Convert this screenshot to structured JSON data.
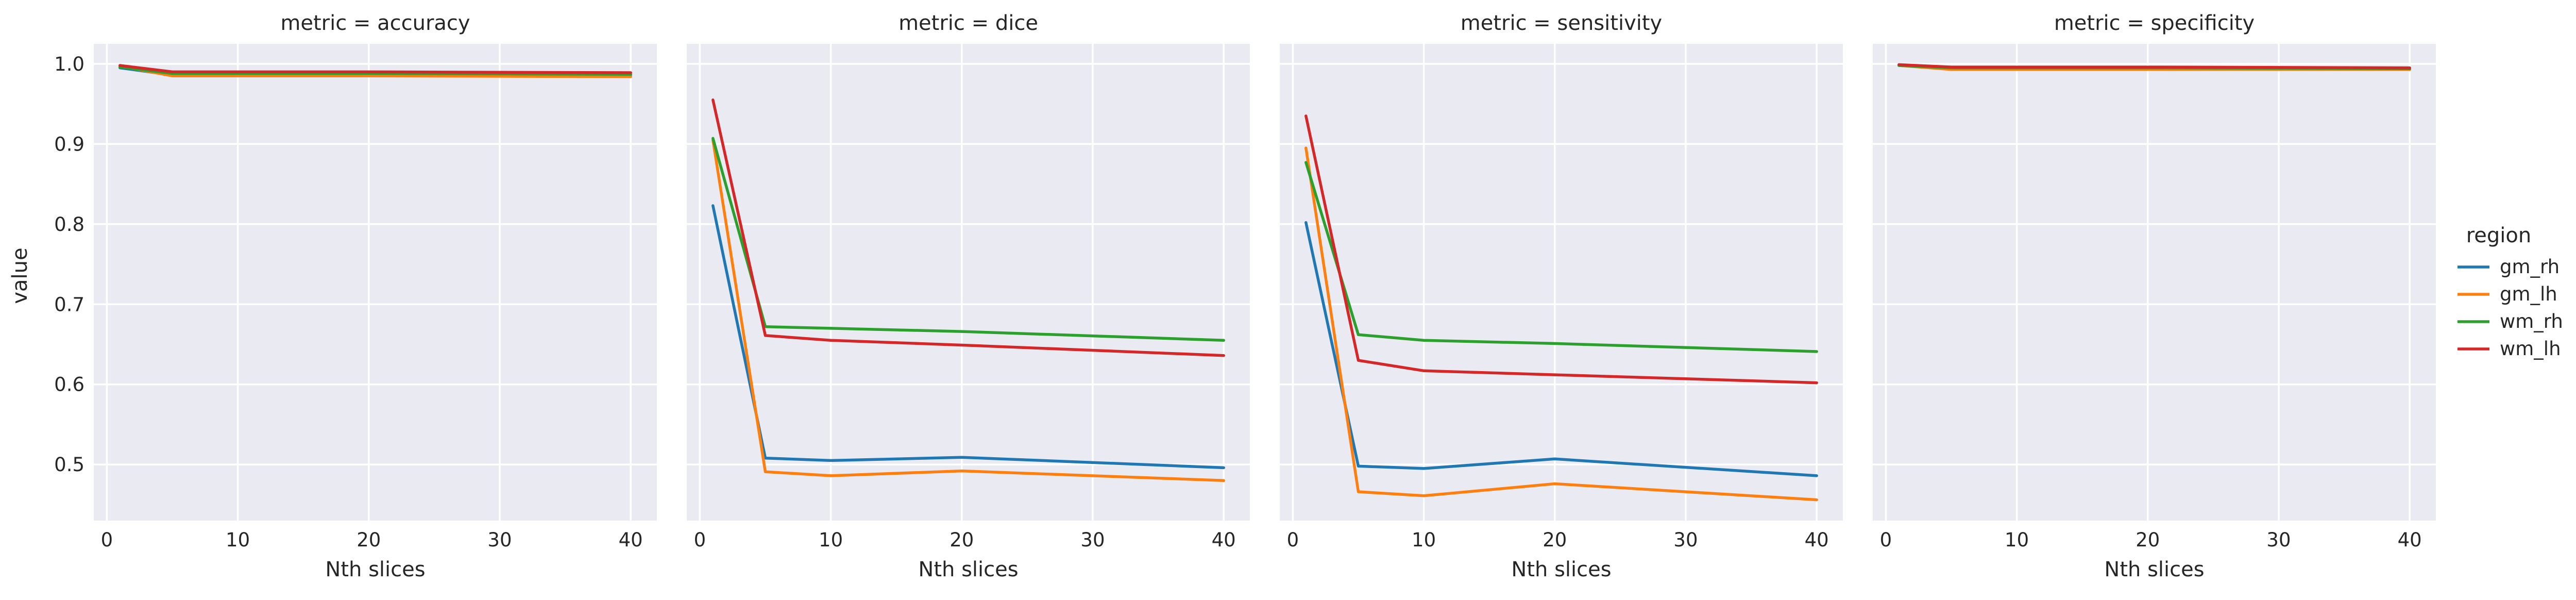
{
  "chart_data": {
    "type": "line",
    "facet_title_template": "metric = {metric}",
    "xlabel": "Nth slices",
    "ylabel": "value",
    "xlim": [
      -1,
      42
    ],
    "ylim": [
      0.43,
      1.025
    ],
    "xticks": [
      0,
      10,
      20,
      30,
      40
    ],
    "yticks": [
      0.5,
      0.6,
      0.7,
      0.8,
      0.9,
      1.0
    ],
    "ytick_labels": [
      "0.5",
      "0.6",
      "0.7",
      "0.8",
      "0.9",
      "1.0"
    ],
    "grid": true,
    "legend": {
      "title": "region",
      "placement": "right",
      "entries": [
        "gm_rh",
        "gm_lh",
        "wm_rh",
        "wm_lh"
      ]
    },
    "colors": {
      "gm_rh": "#1f77b4",
      "gm_lh": "#ff7f0e",
      "wm_rh": "#2ca02c",
      "wm_lh": "#d62728"
    },
    "x": [
      1,
      5,
      10,
      20,
      40
    ],
    "panels": [
      {
        "metric": "accuracy",
        "title": "metric = accuracy",
        "series": [
          {
            "name": "gm_rh",
            "values": [
              0.995,
              0.986,
              0.986,
              0.986,
              0.986
            ]
          },
          {
            "name": "gm_lh",
            "values": [
              0.997,
              0.985,
              0.985,
              0.985,
              0.984
            ]
          },
          {
            "name": "wm_rh",
            "values": [
              0.996,
              0.988,
              0.988,
              0.988,
              0.987
            ]
          },
          {
            "name": "wm_lh",
            "values": [
              0.998,
              0.99,
              0.99,
              0.99,
              0.989
            ]
          }
        ]
      },
      {
        "metric": "dice",
        "title": "metric = dice",
        "series": [
          {
            "name": "gm_rh",
            "values": [
              0.823,
              0.508,
              0.505,
              0.509,
              0.496
            ]
          },
          {
            "name": "gm_lh",
            "values": [
              0.905,
              0.491,
              0.486,
              0.492,
              0.48
            ]
          },
          {
            "name": "wm_rh",
            "values": [
              0.907,
              0.672,
              0.67,
              0.666,
              0.655
            ]
          },
          {
            "name": "wm_lh",
            "values": [
              0.955,
              0.661,
              0.655,
              0.649,
              0.636
            ]
          }
        ]
      },
      {
        "metric": "sensitivity",
        "title": "metric = sensitivity",
        "series": [
          {
            "name": "gm_rh",
            "values": [
              0.802,
              0.498,
              0.495,
              0.507,
              0.486
            ]
          },
          {
            "name": "gm_lh",
            "values": [
              0.895,
              0.466,
              0.461,
              0.476,
              0.456
            ]
          },
          {
            "name": "wm_rh",
            "values": [
              0.877,
              0.662,
              0.655,
              0.651,
              0.641
            ]
          },
          {
            "name": "wm_lh",
            "values": [
              0.935,
              0.63,
              0.617,
              0.612,
              0.602
            ]
          }
        ]
      },
      {
        "metric": "specificity",
        "title": "metric = specificity",
        "series": [
          {
            "name": "gm_rh",
            "values": [
              0.998,
              0.994,
              0.994,
              0.994,
              0.993
            ]
          },
          {
            "name": "gm_lh",
            "values": [
              0.998,
              0.993,
              0.993,
              0.993,
              0.993
            ]
          },
          {
            "name": "wm_rh",
            "values": [
              0.998,
              0.995,
              0.995,
              0.995,
              0.994
            ]
          },
          {
            "name": "wm_lh",
            "values": [
              0.999,
              0.996,
              0.996,
              0.996,
              0.995
            ]
          }
        ]
      }
    ]
  }
}
